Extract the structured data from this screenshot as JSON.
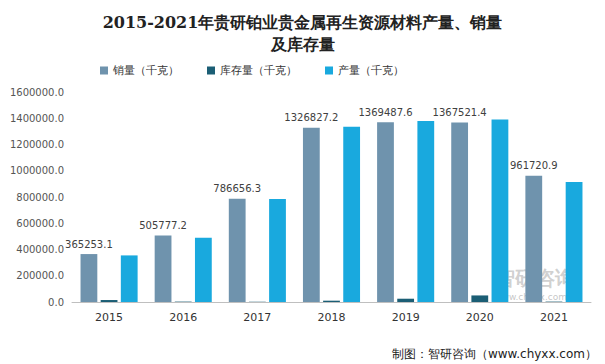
{
  "chart_data": {
    "type": "bar",
    "title": "2015-2021年贵研铂业贵金属再生资源材料产量、销量\n及库存量",
    "categories": [
      "2015",
      "2016",
      "2017",
      "2018",
      "2019",
      "2020",
      "2021"
    ],
    "series": [
      {
        "name": "销量（千克）",
        "color": "#6f93ad",
        "data_labels": true,
        "values": [
          365253.1,
          505777.2,
          786656.3,
          1326827.2,
          1369487.6,
          1367521.4,
          961720.9
        ]
      },
      {
        "name": "库存量（千克）",
        "color": "#1b5e75",
        "values": [
          15000,
          3000,
          2000,
          10000,
          25000,
          50000,
          3000
        ]
      },
      {
        "name": "产量（千克）",
        "color": "#19a9de",
        "values": [
          355000,
          490000,
          785000,
          1335000,
          1380000,
          1390000,
          915000
        ]
      }
    ],
    "ylim": [
      0,
      1600000
    ],
    "yticks": [
      {
        "value": 0,
        "label": "0.0"
      },
      {
        "value": 200000,
        "label": "200000.0"
      },
      {
        "value": 400000,
        "label": "400000.0"
      },
      {
        "value": 600000,
        "label": "600000.0"
      },
      {
        "value": 800000,
        "label": "800000.0"
      },
      {
        "value": 1000000,
        "label": "1000000.0"
      },
      {
        "value": 1200000,
        "label": "1200000.0"
      },
      {
        "value": 1400000,
        "label": "1400000.0"
      },
      {
        "value": 1600000,
        "label": "1600000.0"
      }
    ],
    "grid": false,
    "legend": "top",
    "annotations": [
      "智研咨询",
      "www.chyxx.com",
      "制图：智研咨询（www.chyxx.com）"
    ]
  }
}
